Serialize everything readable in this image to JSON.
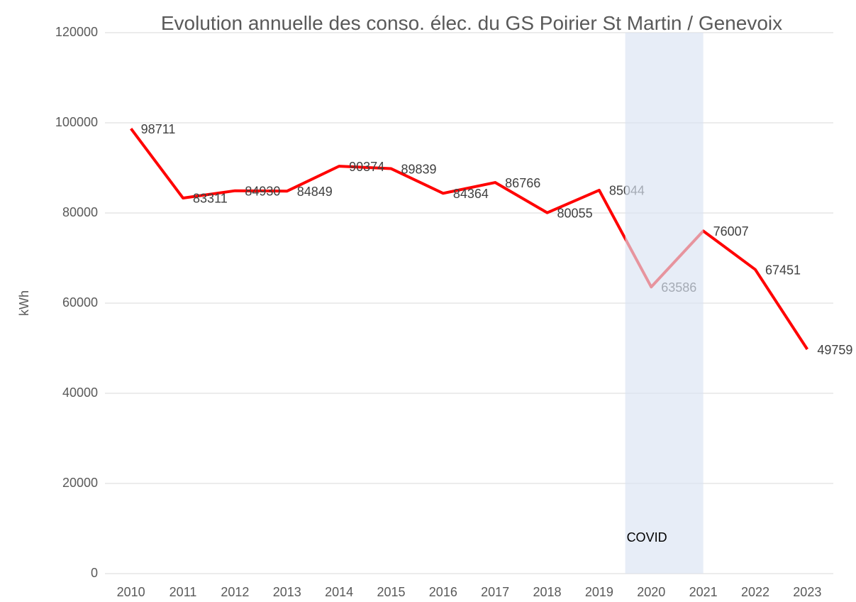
{
  "chart_data": {
    "type": "line",
    "title": "Evolution annuelle des conso. élec. du GS Poirier St Martin / Genevoix",
    "y_label": "kWh",
    "x": [
      2010,
      2011,
      2012,
      2013,
      2014,
      2015,
      2016,
      2017,
      2018,
      2019,
      2020,
      2021,
      2022,
      2023
    ],
    "series": [
      {
        "name": "kWh",
        "color": "#ff0000",
        "values": [
          98711,
          83311,
          84930,
          84849,
          90374,
          89839,
          84364,
          86766,
          80055,
          85044,
          63586,
          76007,
          67451,
          49759
        ]
      }
    ],
    "xlim": [
      2009.5,
      2023.5
    ],
    "xticks": [
      2010,
      2011,
      2012,
      2013,
      2014,
      2015,
      2016,
      2017,
      2018,
      2019,
      2020,
      2021,
      2022,
      2023
    ],
    "ylim": [
      0,
      120000
    ],
    "yticks": [
      0,
      20000,
      40000,
      60000,
      80000,
      100000,
      120000
    ],
    "grid": true,
    "band": {
      "label": "COVID",
      "from": 2019.5,
      "to": 2021,
      "color": "#dae3f3"
    }
  }
}
